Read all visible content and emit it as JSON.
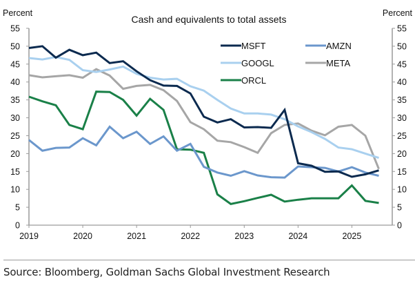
{
  "chart_data": {
    "type": "line",
    "title": "Cash and equivalents to total assets",
    "ylabel_left": "Percent",
    "ylabel_right": "Percent",
    "xlabel": "",
    "ylim": [
      0,
      55
    ],
    "yticks": [
      0,
      5,
      10,
      15,
      20,
      25,
      30,
      35,
      40,
      45,
      50,
      55
    ],
    "xlim": [
      2019,
      2025.75
    ],
    "xticks": [
      2019,
      2020,
      2021,
      2022,
      2023,
      2024,
      2025
    ],
    "x_labels": [
      "2019",
      "2020",
      "2021",
      "2022",
      "2023",
      "2024",
      "2025"
    ],
    "grid": false,
    "legend_position": "top-right",
    "frequency": "quarterly",
    "x": [
      2019.0,
      2019.25,
      2019.5,
      2019.75,
      2020.0,
      2020.25,
      2020.5,
      2020.75,
      2021.0,
      2021.25,
      2021.5,
      2021.75,
      2022.0,
      2022.25,
      2022.5,
      2022.75,
      2023.0,
      2023.25,
      2023.5,
      2023.75,
      2024.0,
      2024.25,
      2024.5,
      2024.75,
      2025.0,
      2025.25,
      2025.5
    ],
    "series": [
      {
        "name": "MSFT",
        "color": "#0b2a4f",
        "values": [
          49.5,
          50.0,
          46.8,
          49.0,
          47.5,
          48.2,
          45.3,
          45.8,
          43.0,
          40.5,
          39.0,
          38.9,
          36.8,
          30.3,
          28.7,
          29.6,
          27.3,
          27.4,
          27.2,
          32.2,
          17.3,
          16.6,
          14.9,
          15.0,
          13.5,
          14.2,
          15.3
        ]
      },
      {
        "name": "AMZN",
        "color": "#6b97cc",
        "values": [
          23.8,
          20.8,
          21.6,
          21.7,
          24.3,
          22.3,
          27.5,
          24.3,
          26.1,
          22.7,
          24.8,
          20.8,
          22.7,
          16.3,
          14.7,
          13.8,
          15.1,
          13.9,
          13.4,
          13.3,
          16.4,
          16.2,
          16.0,
          15.0,
          16.2,
          14.7,
          13.8
        ]
      },
      {
        "name": "GOOGL",
        "color": "#a9d0ef",
        "values": [
          46.7,
          46.3,
          47.0,
          46.2,
          43.3,
          42.8,
          43.5,
          44.3,
          42.3,
          41.2,
          40.7,
          40.9,
          38.8,
          37.6,
          35.0,
          32.6,
          31.2,
          31.2,
          30.9,
          29.6,
          27.6,
          26.0,
          24.1,
          21.7,
          21.2,
          20.0,
          18.8
        ]
      },
      {
        "name": "META",
        "color": "#a6a6a6",
        "values": [
          41.9,
          41.3,
          41.6,
          41.9,
          41.2,
          43.6,
          41.8,
          38.1,
          38.9,
          39.2,
          37.7,
          34.7,
          28.8,
          26.8,
          23.6,
          23.2,
          21.8,
          20.2,
          25.7,
          28.0,
          28.4,
          26.4,
          25.1,
          27.5,
          28.0,
          25.0,
          15.7
        ]
      },
      {
        "name": "ORCL",
        "color": "#1a8048",
        "values": [
          35.9,
          34.6,
          33.5,
          28.0,
          26.8,
          37.3,
          37.2,
          35.0,
          30.6,
          35.3,
          32.2,
          21.2,
          21.1,
          20.2,
          8.6,
          5.9,
          6.7,
          7.6,
          8.5,
          6.6,
          7.1,
          7.5,
          7.5,
          7.5,
          11.1,
          6.8,
          6.2
        ]
      }
    ]
  },
  "source": "Source: Bloomberg, Goldman Sachs Global Investment Research"
}
